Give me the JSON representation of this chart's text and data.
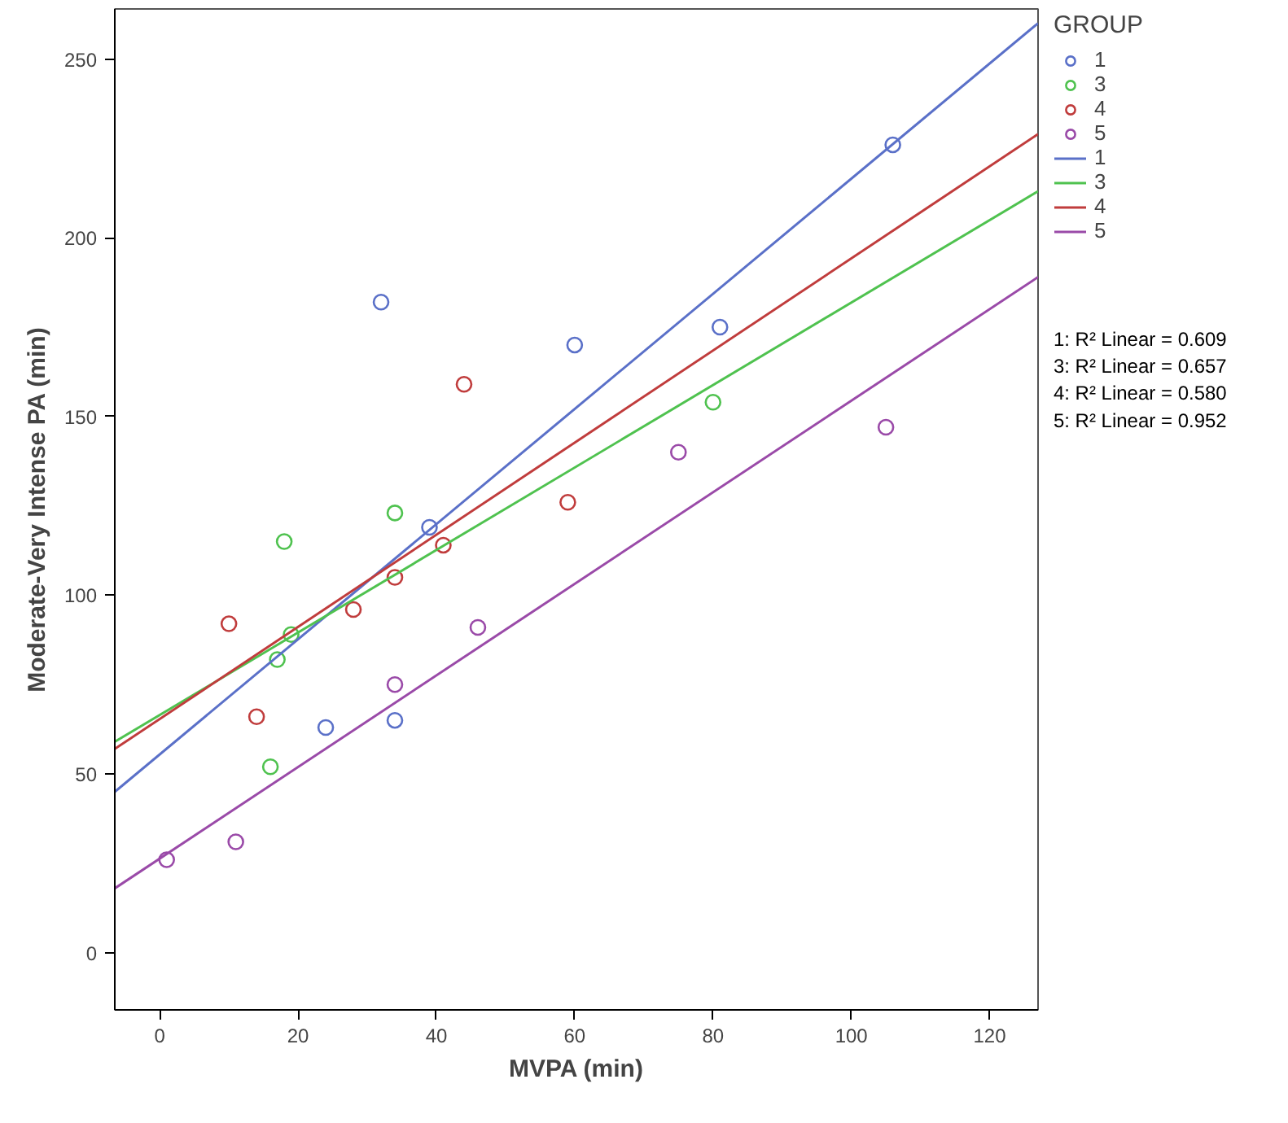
{
  "chart_data": {
    "type": "scatter",
    "xlabel": "MVPA (min)",
    "ylabel": "Moderate-Very Intense PA (min)",
    "legend_title": "GROUP",
    "legend": "right",
    "grid": false,
    "xlim": [
      -6.5,
      127
    ],
    "ylim": [
      -16,
      264
    ],
    "xticks": [
      0,
      20,
      40,
      60,
      80,
      100,
      120
    ],
    "yticks": [
      0,
      50,
      100,
      150,
      200,
      250
    ],
    "series": [
      {
        "name": "1",
        "marker": "circle",
        "color": "#5a70c8",
        "x": [
          32,
          60,
          81,
          106,
          39,
          24,
          34
        ],
        "values": [
          182,
          170,
          175,
          226,
          119,
          63,
          65
        ]
      },
      {
        "name": "3",
        "marker": "circle",
        "color": "#4fc24f",
        "x": [
          18,
          34,
          19,
          17,
          16,
          80
        ],
        "values": [
          115,
          123,
          89,
          82,
          52,
          154
        ]
      },
      {
        "name": "4",
        "marker": "circle",
        "color": "#c03c3c",
        "x": [
          10,
          14,
          28,
          34,
          41,
          44,
          59
        ],
        "values": [
          92,
          66,
          96,
          105,
          114,
          159,
          126
        ]
      },
      {
        "name": "5",
        "marker": "circle",
        "color": "#9a4aa8",
        "x": [
          1,
          11,
          34,
          46,
          75,
          105
        ],
        "values": [
          26,
          31,
          75,
          91,
          140,
          147
        ]
      },
      {
        "name": "1",
        "type": "line",
        "marker": "none",
        "color": "#5a70c8",
        "x": [
          -6.5,
          127
        ],
        "values": [
          45,
          260
        ]
      },
      {
        "name": "3",
        "type": "line",
        "marker": "none",
        "color": "#4fc24f",
        "x": [
          -6.5,
          127
        ],
        "values": [
          59,
          213
        ]
      },
      {
        "name": "4",
        "type": "line",
        "marker": "none",
        "color": "#c03c3c",
        "x": [
          -6.5,
          127
        ],
        "values": [
          57,
          229
        ]
      },
      {
        "name": "5",
        "type": "line",
        "marker": "none",
        "color": "#9a4aa8",
        "x": [
          -6.5,
          127
        ],
        "values": [
          18,
          189
        ]
      }
    ],
    "annotations": [
      "1: R² Linear = 0.609",
      "3: R² Linear = 0.657",
      "4: R² Linear = 0.580",
      "5: R² Linear = 0.952"
    ]
  }
}
